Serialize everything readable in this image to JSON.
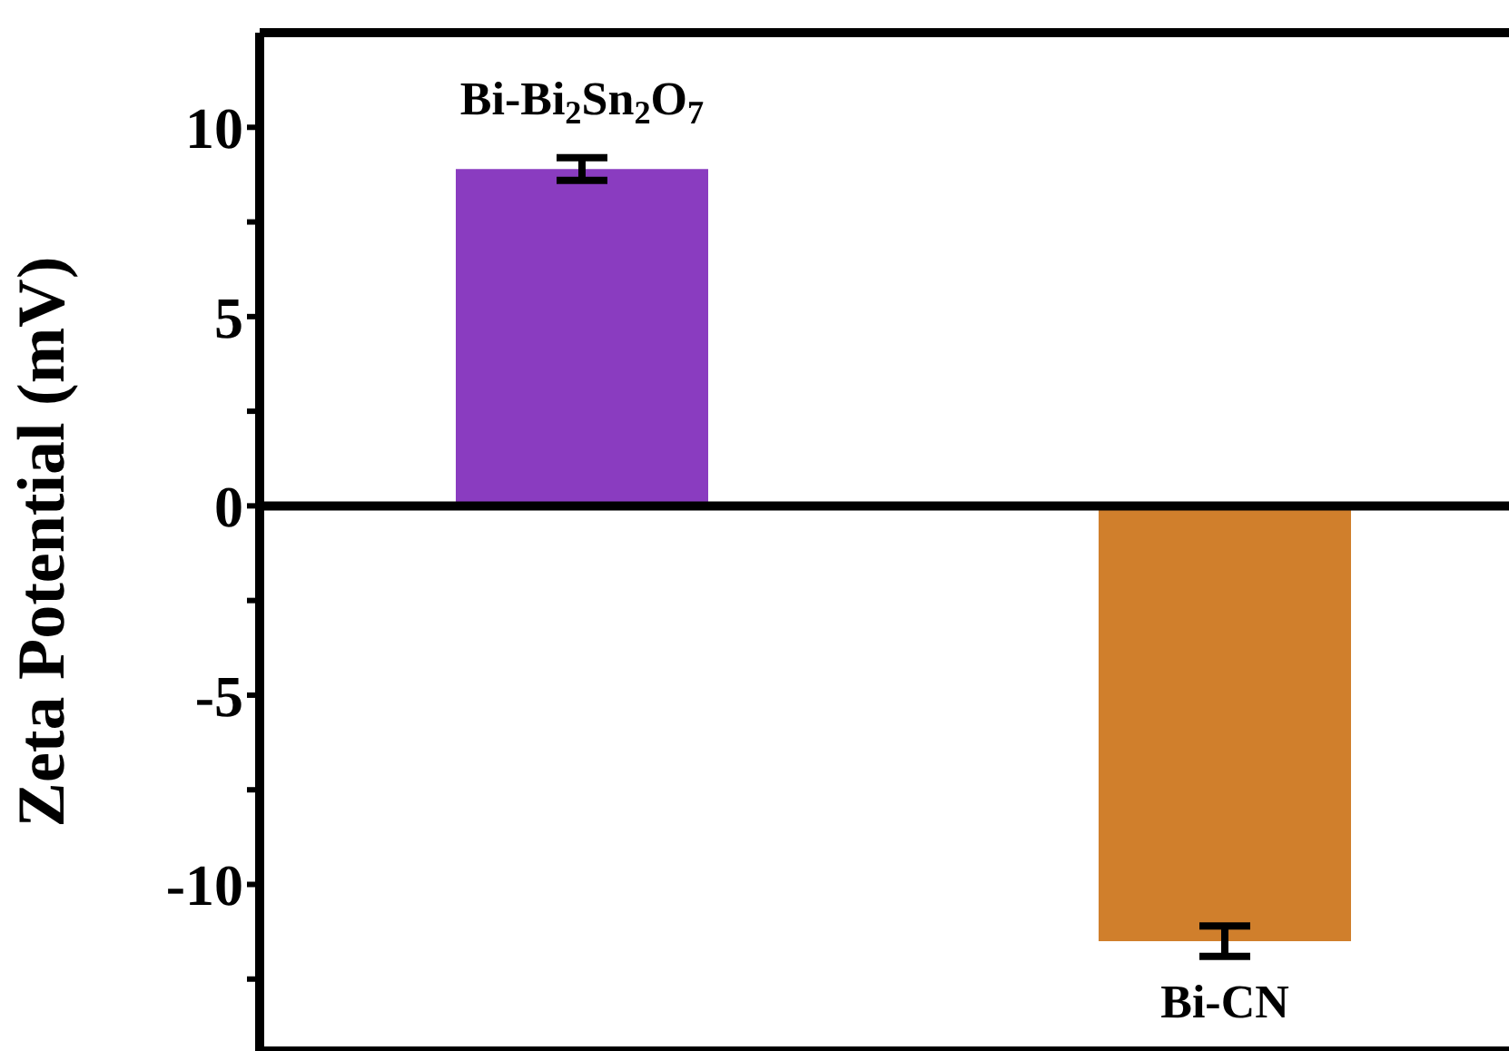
{
  "chart_data": {
    "type": "bar",
    "ylabel": "Zeta Potential (mV)",
    "categories": [
      "Bi-Bi$_{2}$Sn$_{2}$O$_{7}$",
      "Bi-CN"
    ],
    "values": [
      8.9,
      -11.5
    ],
    "errors": [
      0.3,
      0.4
    ],
    "colors": [
      "#8a3cc0",
      "#d07f2c"
    ],
    "ylim": [
      -14.4,
      12.5
    ],
    "yticks": [
      10,
      {
        "value": 7.5,
        "label": null
      },
      5,
      {
        "value": 2.5,
        "label": null
      },
      0,
      {
        "value": -2.5,
        "label": null
      },
      -5,
      {
        "value": -7.5,
        "label": null
      },
      -10,
      {
        "value": -12.5,
        "label": null
      }
    ],
    "tick_labels": "y",
    "ref_lines": [
      {
        "axis": "y",
        "value": 0,
        "color": "#000000"
      }
    ]
  }
}
